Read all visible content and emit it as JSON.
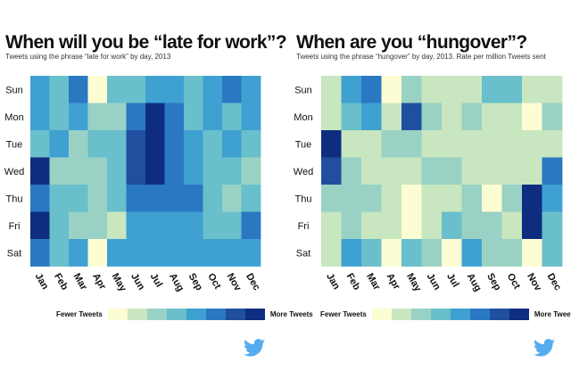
{
  "chart_data": [
    {
      "type": "heatmap",
      "title": "When will you be “late for work”?",
      "subtitle": "Tweets using the phrase “late for work” by day, 2013",
      "x_categories": [
        "Jan",
        "Feb",
        "Mar",
        "Apr",
        "May",
        "Jun",
        "Jul",
        "Aug",
        "Sep",
        "Oct",
        "Nov",
        "Dec"
      ],
      "y_categories": [
        "Sun",
        "Mon",
        "Tue",
        "Wed",
        "Thu",
        "Fri",
        "Sat"
      ],
      "value_range": [
        1,
        8
      ],
      "values": [
        [
          5,
          4,
          6,
          1,
          4,
          4,
          5,
          5,
          4,
          5,
          6,
          5
        ],
        [
          5,
          4,
          5,
          3,
          3,
          6,
          8,
          6,
          4,
          5,
          4,
          5
        ],
        [
          4,
          5,
          3,
          4,
          4,
          7,
          8,
          6,
          5,
          4,
          5,
          4
        ],
        [
          8,
          3,
          3,
          3,
          4,
          7,
          8,
          6,
          5,
          4,
          4,
          3
        ],
        [
          6,
          4,
          4,
          3,
          4,
          6,
          6,
          6,
          6,
          4,
          3,
          4
        ],
        [
          8,
          4,
          3,
          3,
          2,
          5,
          5,
          5,
          5,
          4,
          4,
          6
        ],
        [
          6,
          4,
          5,
          1,
          5,
          5,
          5,
          5,
          5,
          5,
          5,
          5
        ]
      ],
      "legend": {
        "low_label": "Fewer Tweets",
        "high_label": "More Tweets",
        "placement": "bottom"
      },
      "colors": [
        "#fcfdd2",
        "#c8e6c0",
        "#99d2c4",
        "#69bfcb",
        "#3fa0d2",
        "#2a78c2",
        "#1f4f9e",
        "#0e2d80"
      ]
    },
    {
      "type": "heatmap",
      "title": "When are you “hungover”?",
      "subtitle": "Tweets using the phrase “hungover” by day, 2013. Rate per million Tweets sent",
      "x_categories": [
        "Jan",
        "Feb",
        "Mar",
        "Apr",
        "May",
        "Jun",
        "Jul",
        "Aug",
        "Sep",
        "Oct",
        "Nov",
        "Dec"
      ],
      "y_categories": [
        "Sun",
        "Mon",
        "Tue",
        "Wed",
        "Thu",
        "Fri",
        "Sat"
      ],
      "value_range": [
        1,
        8
      ],
      "values": [
        [
          2,
          5,
          6,
          1,
          3,
          2,
          2,
          2,
          4,
          4,
          2,
          2
        ],
        [
          2,
          4,
          5,
          2,
          7,
          3,
          2,
          3,
          2,
          2,
          1,
          3
        ],
        [
          8,
          2,
          2,
          3,
          3,
          2,
          2,
          2,
          2,
          2,
          2,
          2
        ],
        [
          7,
          3,
          2,
          2,
          2,
          3,
          3,
          2,
          2,
          2,
          2,
          6
        ],
        [
          3,
          3,
          3,
          2,
          1,
          2,
          2,
          3,
          1,
          3,
          8,
          5
        ],
        [
          2,
          3,
          2,
          2,
          1,
          2,
          4,
          3,
          3,
          2,
          8,
          4
        ],
        [
          2,
          5,
          4,
          1,
          4,
          3,
          1,
          5,
          3,
          3,
          1,
          4
        ]
      ],
      "legend": {
        "low_label": "Fewer Tweets",
        "high_label": "More Tweets",
        "placement": "bottom"
      },
      "colors": [
        "#fcfdd2",
        "#c8e6c0",
        "#99d2c4",
        "#69bfcb",
        "#3fa0d2",
        "#2a78c2",
        "#1f4f9e",
        "#0e2d80"
      ]
    }
  ],
  "brand": {
    "icon": "twitter-bird-icon",
    "color": "#55acee"
  }
}
